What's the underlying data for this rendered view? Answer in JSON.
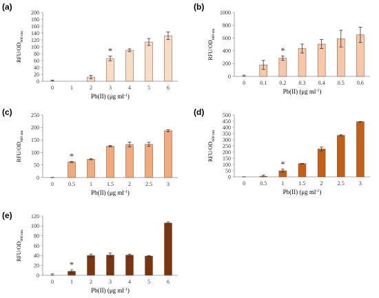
{
  "chart_data": [
    {
      "type": "bar",
      "panel": "(a)",
      "color": "#f7dcc6",
      "categories": [
        "0",
        "1",
        "2",
        "3",
        "4",
        "5",
        "6"
      ],
      "values": [
        0,
        0,
        12,
        66,
        90,
        114,
        132
      ],
      "errors": [
        3,
        0,
        5,
        7,
        4,
        10,
        11
      ],
      "significant_index": 3,
      "significance_marker": "*",
      "ylim": [
        0,
        200
      ],
      "yticks": [
        0,
        20,
        40,
        60,
        80,
        100,
        120,
        140,
        160,
        180,
        200
      ],
      "ylabel": "RFU/OD",
      "ylabel_sub": "600 nm",
      "xlabel": "Pb(II) (μg ml",
      "xlabel_sup": "-1",
      "xlabel_end": ")"
    },
    {
      "type": "bar",
      "panel": "(b)",
      "color": "#f6c7aa",
      "categories": [
        "0",
        "0.1",
        "0.2",
        "0.3",
        "0.4",
        "0.5",
        "0.6"
      ],
      "values": [
        0,
        180,
        285,
        435,
        505,
        590,
        650
      ],
      "errors": [
        20,
        70,
        35,
        70,
        70,
        130,
        120
      ],
      "significant_index": 2,
      "significance_marker": "*",
      "ylim": [
        0,
        1000
      ],
      "yticks": [
        0,
        200,
        400,
        600,
        800,
        1000
      ],
      "ylabel": "RFU/OD",
      "ylabel_sub": "600 nm",
      "xlabel": "Pb(II) (μg ml",
      "xlabel_sup": "-1",
      "xlabel_end": ")"
    },
    {
      "type": "bar",
      "panel": "(c)",
      "color": "#f1a97e",
      "categories": [
        "0",
        "0.5",
        "1",
        "1.5",
        "2",
        "2.5",
        "3"
      ],
      "values": [
        0,
        62,
        73,
        125,
        132,
        133,
        187
      ],
      "errors": [
        1,
        2,
        2,
        3,
        10,
        8,
        4
      ],
      "significant_index": 1,
      "significance_marker": "*",
      "ylim": [
        0,
        250
      ],
      "yticks": [
        0,
        50,
        100,
        150,
        200,
        250
      ],
      "ylabel": "RFU/OD",
      "ylabel_sub": "600 nm",
      "xlabel": "Pb(II) (μg ml",
      "xlabel_sup": "-1",
      "xlabel_end": ")"
    },
    {
      "type": "bar",
      "panel": "(d)",
      "color": "#c2601a",
      "categories": [
        "0",
        "0.5",
        "1",
        "1.5",
        "2",
        "2.5",
        "3"
      ],
      "values": [
        0,
        5,
        50,
        107,
        225,
        335,
        445
      ],
      "errors": [
        1,
        10,
        12,
        2,
        15,
        5,
        2
      ],
      "significant_index": 2,
      "significance_marker": "*",
      "ylim": [
        0,
        500
      ],
      "yticks": [
        0,
        50,
        100,
        150,
        200,
        250,
        300,
        350,
        400,
        450,
        500
      ],
      "ylabel": "RFU/OD",
      "ylabel_sub": "600 nm",
      "xlabel": "Pb(II) (μg ml",
      "xlabel_sup": "-1",
      "xlabel_end": ")"
    },
    {
      "type": "bar",
      "panel": "(e)",
      "color": "#7a3410",
      "categories": [
        "0",
        "1",
        "2",
        "3",
        "4",
        "5",
        "6"
      ],
      "values": [
        0,
        8,
        40,
        41,
        41,
        39,
        106
      ],
      "errors": [
        3,
        3,
        3,
        4,
        2,
        1,
        2
      ],
      "significant_index": 1,
      "significance_marker": "*",
      "ylim": [
        0,
        120
      ],
      "yticks": [
        0,
        20,
        40,
        60,
        80,
        100,
        120
      ],
      "ylabel": "RFU/OD",
      "ylabel_sub": "600 nm",
      "xlabel": "Pb(II) (μg ml",
      "xlabel_sup": "-1",
      "xlabel_end": ")"
    }
  ]
}
